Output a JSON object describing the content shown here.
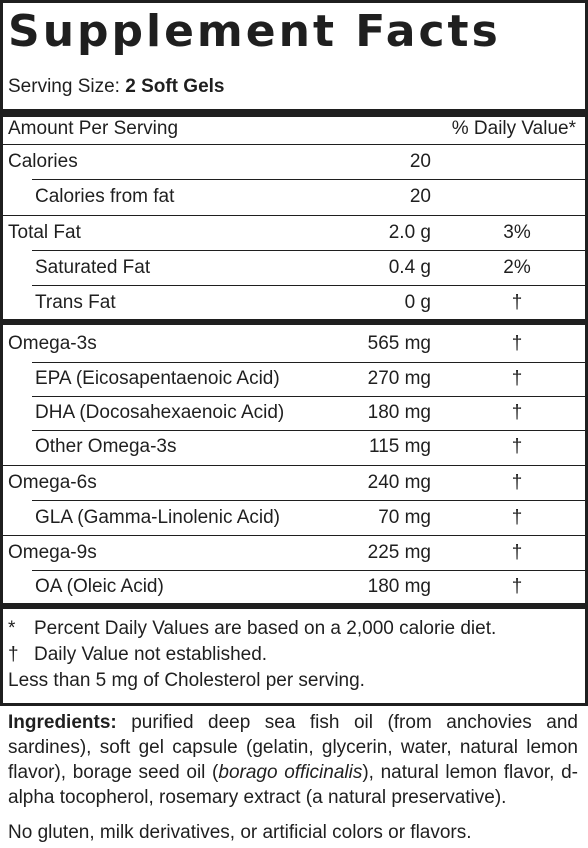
{
  "title": "Supplement Facts",
  "serving": {
    "label": "Serving Size:",
    "value": "2 Soft Gels"
  },
  "header": {
    "amount_label": "Amount Per Serving",
    "dv_label": "% Daily Value*"
  },
  "rows": [
    {
      "label": "Calories",
      "amount": "20",
      "dv": "",
      "indent": false
    },
    {
      "label": "Calories from fat",
      "amount": "20",
      "dv": "",
      "indent": true
    },
    {
      "label": "Total Fat",
      "amount": "2.0 g",
      "dv": "3%",
      "indent": false
    },
    {
      "label": "Saturated Fat",
      "amount": "0.4 g",
      "dv": "2%",
      "indent": true
    },
    {
      "label": "Trans Fat",
      "amount": "0 g",
      "dv": "†",
      "indent": true
    },
    {
      "label": "Omega-3s",
      "amount": "565 mg",
      "dv": "†",
      "indent": false
    },
    {
      "label": "EPA (Eicosapentaenoic Acid)",
      "amount": "270 mg",
      "dv": "†",
      "indent": true
    },
    {
      "label": "DHA (Docosahexaenoic Acid)",
      "amount": "180 mg",
      "dv": "†",
      "indent": true
    },
    {
      "label": "Other Omega-3s",
      "amount": "115 mg",
      "dv": "†",
      "indent": true
    },
    {
      "label": "Omega-6s",
      "amount": "240 mg",
      "dv": "†",
      "indent": false
    },
    {
      "label": "GLA (Gamma-Linolenic Acid)",
      "amount": "70 mg",
      "dv": "†",
      "indent": true
    },
    {
      "label": "Omega-9s",
      "amount": "225 mg",
      "dv": "†",
      "indent": false
    },
    {
      "label": "OA (Oleic Acid)",
      "amount": "180 mg",
      "dv": "†",
      "indent": true
    }
  ],
  "footnotes": {
    "pdv_symbol": "*",
    "pdv_text": "Percent Daily Values are based on a 2,000 calorie diet.",
    "dagger_symbol": "†",
    "dagger_text": "Daily Value not established.",
    "cholesterol": "Less than 5 mg of Cholesterol per serving."
  },
  "ingredients": {
    "label": "Ingredients:",
    "text_1": " purified deep sea fish oil (from anchovies and sardines), soft gel capsule (gelatin, glycerin, water, natural lemon flavor), borage seed oil (",
    "italic": "borago officinalis",
    "text_2": "), natural lemon flavor, d-alpha tocopherol, rosemary extract (a natural preservative)."
  },
  "free_from": "No gluten, milk derivatives, or artificial colors or flavors."
}
